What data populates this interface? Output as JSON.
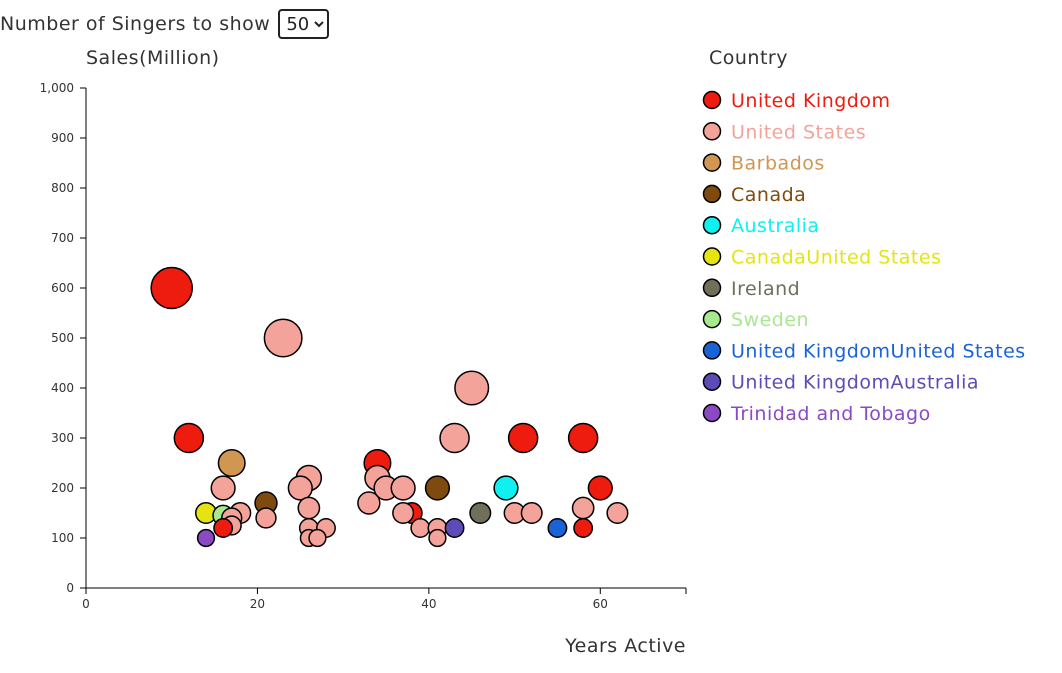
{
  "controls": {
    "singers_label": "Number of Singers to show",
    "singers_selected": "50",
    "singers_options": [
      "50"
    ]
  },
  "chart_data": {
    "type": "scatter",
    "xlabel": "Years Active",
    "ylabel": "Sales(Million)",
    "xlim": [
      0,
      70
    ],
    "ylim": [
      0,
      1000
    ],
    "x_ticks": [
      "0",
      "20",
      "40",
      "60"
    ],
    "x_tick_values": [
      0,
      20,
      40,
      60
    ],
    "y_ticks": [
      "0",
      "100",
      "200",
      "300",
      "400",
      "500",
      "600",
      "700",
      "800",
      "900",
      "1,000"
    ],
    "y_tick_values": [
      0,
      100,
      200,
      300,
      400,
      500,
      600,
      700,
      800,
      900,
      1000
    ],
    "grid": false,
    "legend_title": "Country",
    "legend_placement": "right",
    "legend": [
      {
        "name": "United Kingdom",
        "color": "#ee1c0f"
      },
      {
        "name": "United States",
        "color": "#f4a39b"
      },
      {
        "name": "Barbados",
        "color": "#d19651"
      },
      {
        "name": "Canada",
        "color": "#7f4a0e"
      },
      {
        "name": "Australia",
        "color": "#10f0ef"
      },
      {
        "name": "CanadaUnited States",
        "color": "#e4e411"
      },
      {
        "name": "Ireland",
        "color": "#6f6f5a"
      },
      {
        "name": "Sweden",
        "color": "#a8e88f"
      },
      {
        "name": "United KingdomUnited States",
        "color": "#1a63d6"
      },
      {
        "name": "United KingdomAustralia",
        "color": "#5d4bb7"
      },
      {
        "name": "Trinidad and Tobago",
        "color": "#8b4ac4"
      }
    ],
    "points": [
      {
        "x": 10,
        "y": 600,
        "country": "United Kingdom"
      },
      {
        "x": 12,
        "y": 300,
        "country": "United Kingdom"
      },
      {
        "x": 23,
        "y": 500,
        "country": "United States"
      },
      {
        "x": 45,
        "y": 400,
        "country": "United States"
      },
      {
        "x": 43,
        "y": 300,
        "country": "United States"
      },
      {
        "x": 51,
        "y": 300,
        "country": "United Kingdom"
      },
      {
        "x": 58,
        "y": 300,
        "country": "United Kingdom"
      },
      {
        "x": 17,
        "y": 250,
        "country": "Barbados"
      },
      {
        "x": 34,
        "y": 250,
        "country": "United Kingdom"
      },
      {
        "x": 26,
        "y": 220,
        "country": "United States"
      },
      {
        "x": 34,
        "y": 220,
        "country": "United States"
      },
      {
        "x": 16,
        "y": 200,
        "country": "United States"
      },
      {
        "x": 25,
        "y": 200,
        "country": "United States"
      },
      {
        "x": 35,
        "y": 200,
        "country": "United States"
      },
      {
        "x": 37,
        "y": 200,
        "country": "United States"
      },
      {
        "x": 41,
        "y": 200,
        "country": "Canada"
      },
      {
        "x": 49,
        "y": 200,
        "country": "Australia"
      },
      {
        "x": 60,
        "y": 200,
        "country": "United Kingdom"
      },
      {
        "x": 21,
        "y": 170,
        "country": "Canada"
      },
      {
        "x": 33,
        "y": 170,
        "country": "United States"
      },
      {
        "x": 26,
        "y": 160,
        "country": "United States"
      },
      {
        "x": 58,
        "y": 160,
        "country": "United States"
      },
      {
        "x": 14,
        "y": 150,
        "country": "CanadaUnited States"
      },
      {
        "x": 18,
        "y": 150,
        "country": "United States"
      },
      {
        "x": 16,
        "y": 145,
        "country": "Sweden"
      },
      {
        "x": 38,
        "y": 150,
        "country": "United Kingdom"
      },
      {
        "x": 37,
        "y": 150,
        "country": "United States"
      },
      {
        "x": 46,
        "y": 150,
        "country": "Ireland"
      },
      {
        "x": 50,
        "y": 150,
        "country": "United States"
      },
      {
        "x": 52,
        "y": 150,
        "country": "United States"
      },
      {
        "x": 62,
        "y": 150,
        "country": "United States"
      },
      {
        "x": 17,
        "y": 140,
        "country": "United States"
      },
      {
        "x": 21,
        "y": 140,
        "country": "United States"
      },
      {
        "x": 17,
        "y": 125,
        "country": "United States"
      },
      {
        "x": 16,
        "y": 120,
        "country": "United Kingdom"
      },
      {
        "x": 26,
        "y": 120,
        "country": "United States"
      },
      {
        "x": 28,
        "y": 120,
        "country": "United States"
      },
      {
        "x": 39,
        "y": 120,
        "country": "United States"
      },
      {
        "x": 41,
        "y": 120,
        "country": "United States"
      },
      {
        "x": 43,
        "y": 120,
        "country": "United KingdomAustralia"
      },
      {
        "x": 55,
        "y": 120,
        "country": "United KingdomUnited States"
      },
      {
        "x": 58,
        "y": 120,
        "country": "United Kingdom"
      },
      {
        "x": 14,
        "y": 100,
        "country": "Trinidad and Tobago"
      },
      {
        "x": 26,
        "y": 100,
        "country": "United States"
      },
      {
        "x": 27,
        "y": 100,
        "country": "United States"
      },
      {
        "x": 41,
        "y": 100,
        "country": "United States"
      }
    ]
  }
}
